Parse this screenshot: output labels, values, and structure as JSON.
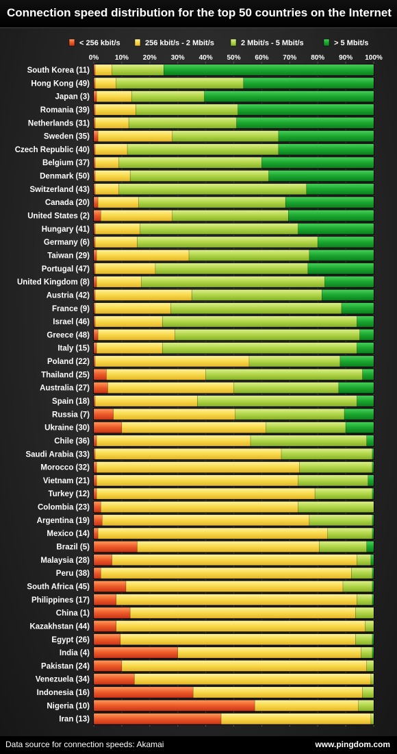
{
  "header": {
    "title": "Connection speed distribution for the top 50 countries on the Internet"
  },
  "footer": {
    "source": "Data source for connection speeds: Akamai",
    "credit": "www.pingdom.com"
  },
  "colors": {
    "lt256k": "#e8492a",
    "k256_2m": "#f5d23d",
    "m2_5m": "#a5cd3a",
    "gt5m": "#17a52b"
  },
  "chart_data": {
    "type": "bar",
    "orientation": "horizontal",
    "stacked": true,
    "xlim": [
      0,
      100
    ],
    "x_ticks": [
      "0%",
      "10%",
      "20%",
      "30%",
      "40%",
      "50%",
      "60%",
      "70%",
      "80%",
      "90%",
      "100%"
    ],
    "legend_position": "top",
    "categories": [
      "South Korea (11)",
      "Hong Kong (49)",
      "Japan (3)",
      "Romania (39)",
      "Netherlands (31)",
      "Sweden (35)",
      "Czech Republic (40)",
      "Belgium (37)",
      "Denmark (50)",
      "Switzerland (43)",
      "Canada (20)",
      "United States (2)",
      "Hungary (41)",
      "Germany (6)",
      "Taiwan (29)",
      "Portugal (47)",
      "United Kingdom (8)",
      "Austria (42)",
      "France (9)",
      "Israel (46)",
      "Greece (48)",
      "Italy (15)",
      "Poland (22)",
      "Thailand (25)",
      "Australia (27)",
      "Spain (18)",
      "Russia (7)",
      "Ukraine (30)",
      "Chile (36)",
      "Saudi Arabia (33)",
      "Morocco (32)",
      "Vietnam (21)",
      "Turkey (12)",
      "Colombia (23)",
      "Argentina (19)",
      "Mexico (14)",
      "Brazil (5)",
      "Malaysia (28)",
      "Peru (38)",
      "South Africa (45)",
      "Philippines (17)",
      "China (1)",
      "Kazakhstan (44)",
      "Egypt (26)",
      "India (4)",
      "Pakistan (24)",
      "Venezuela (34)",
      "Indonesia (16)",
      "Nigeria (10)",
      "Iran (13)"
    ],
    "series": [
      {
        "name": "< 256 kbit/s",
        "color": "#e8492a",
        "values": [
          0.5,
          0.5,
          1,
          0.5,
          0.5,
          1.5,
          0.5,
          0.5,
          0.5,
          0.5,
          1.5,
          2.5,
          0.5,
          0.5,
          1,
          0.5,
          1,
          0.5,
          0.5,
          0.5,
          1.5,
          1,
          0.5,
          4.5,
          5,
          0.5,
          7,
          10,
          1,
          0.5,
          1,
          1,
          1,
          2.5,
          3,
          1.5,
          15.5,
          6.5,
          2.5,
          11.5,
          8,
          13,
          8,
          9.5,
          30,
          10,
          14.5,
          35.5,
          57.5,
          45.5
        ]
      },
      {
        "name": "256 kbit/s - 2 Mbit/s",
        "color": "#f5d23d",
        "values": [
          6,
          7.5,
          12.5,
          14.5,
          12,
          26.5,
          11.5,
          8.5,
          12.5,
          8.5,
          14.5,
          25.5,
          16,
          15,
          33,
          21.5,
          16,
          34.5,
          27,
          24,
          27.5,
          23.5,
          55,
          35.5,
          45,
          36.5,
          43.5,
          51.5,
          55,
          66.5,
          72.5,
          72,
          78,
          70.5,
          74,
          82,
          65,
          87.5,
          89.5,
          77.5,
          86,
          80.5,
          89,
          84,
          65.5,
          87.5,
          84.5,
          60.5,
          37,
          53.5
        ]
      },
      {
        "name": "2 Mbit/s - 5 Mbit/s",
        "color": "#a5cd3a",
        "values": [
          18.5,
          45.5,
          26,
          36.5,
          38.5,
          38,
          54,
          51,
          49.5,
          67,
          52.5,
          41.5,
          56.5,
          64.5,
          43,
          54.5,
          65.5,
          46.5,
          61,
          69.5,
          66,
          69.5,
          32.5,
          56,
          37.5,
          57,
          39,
          28.5,
          41.5,
          32.5,
          26,
          25,
          20.5,
          27,
          22.5,
          16,
          17,
          5,
          7.5,
          10.5,
          5.5,
          6.5,
          3,
          6,
          4,
          2.5,
          1,
          4,
          5.5,
          1
        ]
      },
      {
        "name": "> 5 Mbit/s",
        "color": "#17a52b",
        "values": [
          75,
          46.5,
          60.5,
          48.5,
          49,
          34,
          34,
          40,
          37.5,
          24,
          31.5,
          30.5,
          27,
          20,
          23,
          23.5,
          17.5,
          18.5,
          11.5,
          6,
          5,
          6,
          12,
          4,
          12.5,
          6,
          10.5,
          10,
          2.5,
          0.5,
          0.5,
          2,
          0.5,
          0,
          0.5,
          0.5,
          2.5,
          1,
          0.5,
          0.5,
          0.5,
          0,
          0,
          0.5,
          0.5,
          0,
          0,
          0,
          0,
          0
        ]
      }
    ]
  }
}
